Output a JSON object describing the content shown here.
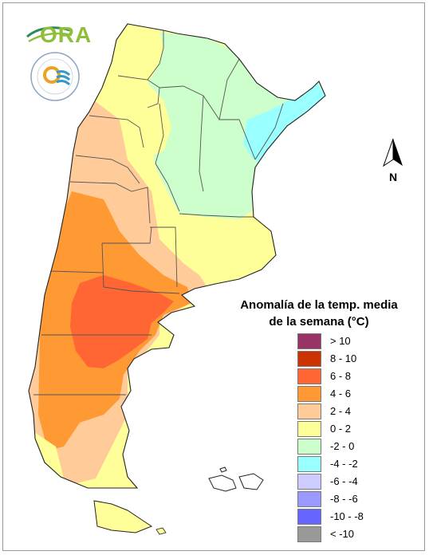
{
  "logos": {
    "ora_text": "ORA",
    "smn_emblem": "SERVICIO METEOROLOGICO NACIONAL ARGENTINA seal"
  },
  "north": {
    "label": "N"
  },
  "legend": {
    "title_line1": "Anomalía de la temp. media",
    "title_line2": "de la semana (°C)",
    "items": [
      {
        "label": "> 10",
        "color": "#993366"
      },
      {
        "label": "8 - 10",
        "color": "#cc3300"
      },
      {
        "label": "6 - 8",
        "color": "#ff6633"
      },
      {
        "label": "4 - 6",
        "color": "#ff9933"
      },
      {
        "label": "2 - 4",
        "color": "#ffcc99"
      },
      {
        "label": "0 - 2",
        "color": "#ffff99"
      },
      {
        "label": "-2 - 0",
        "color": "#ccffcc"
      },
      {
        "label": "-4 - -2",
        "color": "#99ffff"
      },
      {
        "label": "-6 - -4",
        "color": "#ccccff"
      },
      {
        "label": "-8 - -6",
        "color": "#9999ff"
      },
      {
        "label": "-10 - -8",
        "color": "#6666ff"
      },
      {
        "label": "< -10",
        "color": "#999999"
      }
    ]
  }
}
